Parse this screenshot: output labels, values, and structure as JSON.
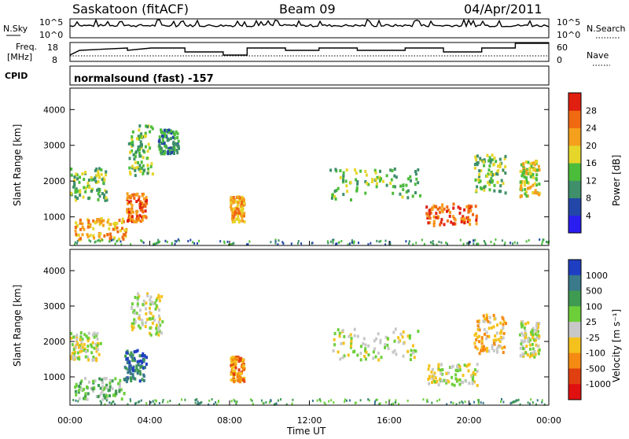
{
  "header": {
    "station": "Saskatoon (fitACF)",
    "beam": "Beam 09",
    "date": "04/Apr/2011"
  },
  "top_panels": {
    "nsky_label": "N.Sky",
    "nsky_ticks": [
      "10^5",
      "10^0"
    ],
    "nsearch_label": "N.Search",
    "nsearch_ticks": [
      "10^5",
      "10^0"
    ],
    "freq_label_line1": "Freq.",
    "freq_label_line2": "[MHz]",
    "freq_ticks": [
      "18",
      "8"
    ],
    "nave_label": "Nave",
    "nave_ticks": [
      "60",
      "0"
    ],
    "cpid_label": "CPID",
    "cpid_text": "normalsound (fast) -157"
  },
  "chart_data": [
    {
      "type": "heatmap",
      "title": "",
      "ylabel": "Slant Range [km]",
      "ylim": [
        200,
        4600
      ],
      "y_ticks": [
        "1000",
        "2000",
        "3000",
        "4000"
      ],
      "colorbar_label": "Power [dB]",
      "colorbar_ticks": [
        "4",
        "8",
        "12",
        "16",
        "20",
        "24",
        "28"
      ],
      "colorbar_colors": [
        "#2a1df0",
        "#2347a8",
        "#3e8f6a",
        "#4cbd3a",
        "#e6d62a",
        "#f5a01d",
        "#f06a12",
        "#e01f10"
      ],
      "echo_regions": [
        {
          "t": [
            0.0,
            1.8
          ],
          "r": [
            1500,
            2400
          ],
          "level": 3
        },
        {
          "t": [
            0.2,
            2.8
          ],
          "r": [
            400,
            1000
          ],
          "level": 5
        },
        {
          "t": [
            2.8,
            3.8
          ],
          "r": [
            900,
            1700
          ],
          "level": 6
        },
        {
          "t": [
            2.9,
            4.1
          ],
          "r": [
            2200,
            3600
          ],
          "level": 3
        },
        {
          "t": [
            4.4,
            5.4
          ],
          "r": [
            2800,
            3500
          ],
          "level": 2
        },
        {
          "t": [
            8.0,
            8.7
          ],
          "r": [
            900,
            1600
          ],
          "level": 5
        },
        {
          "t": [
            13.0,
            17.5
          ],
          "r": [
            1500,
            2400
          ],
          "level": 3
        },
        {
          "t": [
            17.8,
            20.4
          ],
          "r": [
            800,
            1400
          ],
          "level": 6
        },
        {
          "t": [
            20.2,
            21.8
          ],
          "r": [
            1700,
            2800
          ],
          "level": 3
        },
        {
          "t": [
            22.5,
            23.5
          ],
          "r": [
            1600,
            2600
          ],
          "level": 4
        }
      ]
    },
    {
      "type": "heatmap",
      "title": "",
      "xlabel": "Time UT",
      "ylabel": "Slant Range [km]",
      "ylim": [
        200,
        4600
      ],
      "x_ticks": [
        "00:00",
        "04:00",
        "08:00",
        "12:00",
        "16:00",
        "20:00",
        "00:00"
      ],
      "y_ticks": [
        "1000",
        "2000",
        "3000",
        "4000"
      ],
      "colorbar_label": "Velocity [m s⁻¹]",
      "colorbar_ticks": [
        "1000",
        "500",
        "100",
        "25",
        "-25",
        "-100",
        "-500",
        "-1000"
      ],
      "colorbar_colors": [
        "#1f3fc2",
        "#3a7a8a",
        "#3f9a52",
        "#6ccf3a",
        "#c8c8c8",
        "#f5c21d",
        "#f58a12",
        "#e04010",
        "#e01010"
      ],
      "echo_regions": [
        {
          "t": [
            0.0,
            1.5
          ],
          "r": [
            1500,
            2300
          ],
          "level": 4
        },
        {
          "t": [
            0.2,
            2.8
          ],
          "r": [
            400,
            1000
          ],
          "level": 3
        },
        {
          "t": [
            2.7,
            3.8
          ],
          "r": [
            900,
            1800
          ],
          "level": 1
        },
        {
          "t": [
            3.0,
            4.6
          ],
          "r": [
            2200,
            3400
          ],
          "level": 4
        },
        {
          "t": [
            8.0,
            8.7
          ],
          "r": [
            900,
            1600
          ],
          "level": 6
        },
        {
          "t": [
            13.0,
            17.5
          ],
          "r": [
            1500,
            2400
          ],
          "level": 4
        },
        {
          "t": [
            17.8,
            20.4
          ],
          "r": [
            800,
            1400
          ],
          "level": 4
        },
        {
          "t": [
            20.2,
            21.8
          ],
          "r": [
            1700,
            2800
          ],
          "level": 5
        },
        {
          "t": [
            22.5,
            23.5
          ],
          "r": [
            1600,
            2600
          ],
          "level": 4
        }
      ]
    }
  ]
}
